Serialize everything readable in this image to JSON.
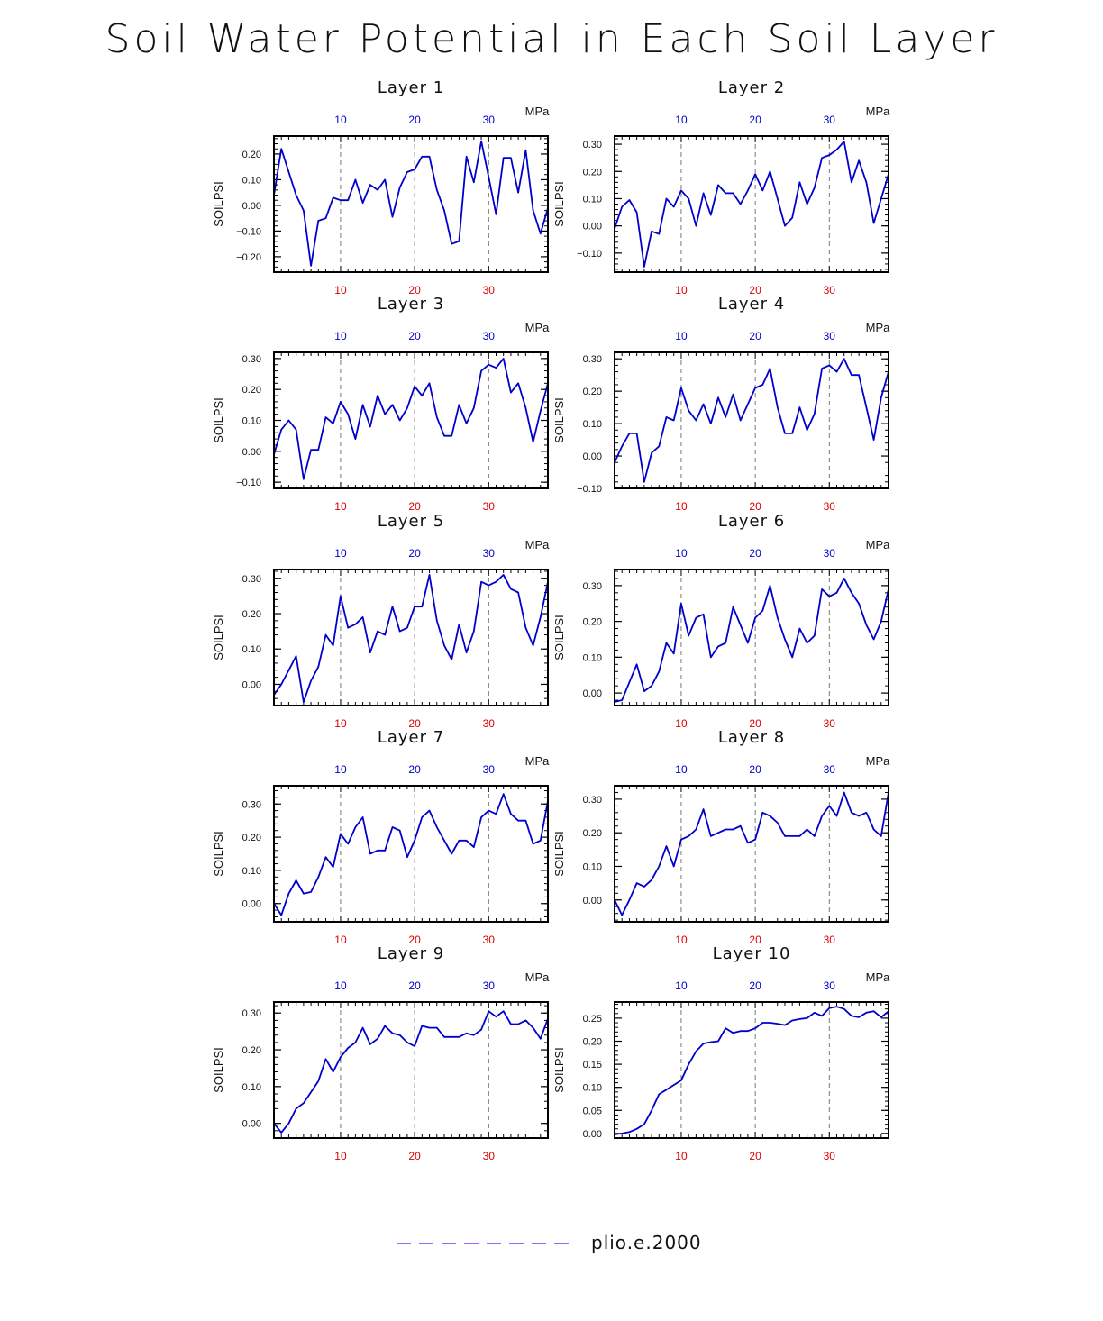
{
  "title": "Soil Water Potential in Each Soil Layer",
  "colors": {
    "line": "#0000cc",
    "top_ticks": "#0000cc",
    "bottom_ticks": "#dd0000",
    "legend": "#9966ff",
    "grid": "#555555"
  },
  "legend": {
    "label": "plio.e.2000",
    "style": "dashed"
  },
  "chart_data": [
    {
      "type": "line",
      "title": "Layer 1",
      "ylabel": "SOILPSI",
      "unit": "MPa",
      "xlim": [
        1,
        38
      ],
      "ylim": [
        -0.26,
        0.27
      ],
      "yticks": [
        -0.2,
        -0.1,
        0.0,
        0.1,
        0.2
      ],
      "ytick_labels": [
        "−0.20",
        "−0.10",
        "0.00",
        "0.10",
        "0.20"
      ],
      "xticks": [
        10,
        20,
        30
      ],
      "xtick_labels": [
        "10",
        "20",
        "30"
      ],
      "series": [
        {
          "x": [
            1,
            2,
            3,
            4,
            5,
            6,
            7,
            8,
            9,
            10,
            11,
            12,
            13,
            14,
            15,
            16,
            17,
            18,
            19,
            20,
            21,
            22,
            23,
            24,
            25,
            26,
            27,
            28,
            29,
            30,
            31,
            32,
            33,
            34,
            35,
            36,
            37,
            38
          ],
          "values": [
            0.04,
            0.22,
            0.13,
            0.04,
            -0.02,
            -0.235,
            -0.06,
            -0.05,
            0.03,
            0.02,
            0.02,
            0.1,
            0.01,
            0.08,
            0.06,
            0.1,
            -0.045,
            0.07,
            0.13,
            0.14,
            0.19,
            0.19,
            0.06,
            -0.02,
            -0.15,
            -0.14,
            0.19,
            0.09,
            0.25,
            0.11,
            -0.035,
            0.185,
            0.185,
            0.05,
            0.215,
            -0.02,
            -0.11,
            -0.01
          ]
        }
      ]
    },
    {
      "type": "line",
      "title": "Layer 2",
      "ylabel": "SOILPSI",
      "unit": "MPa",
      "xlim": [
        1,
        38
      ],
      "ylim": [
        -0.17,
        0.33
      ],
      "yticks": [
        -0.1,
        0.0,
        0.1,
        0.2,
        0.3
      ],
      "ytick_labels": [
        "−0.10",
        "0.00",
        "0.10",
        "0.20",
        "0.30"
      ],
      "xticks": [
        10,
        20,
        30
      ],
      "xtick_labels": [
        "10",
        "20",
        "30"
      ],
      "series": [
        {
          "x": [
            1,
            2,
            3,
            4,
            5,
            6,
            7,
            8,
            9,
            10,
            11,
            12,
            13,
            14,
            15,
            16,
            17,
            18,
            19,
            20,
            21,
            22,
            23,
            24,
            25,
            26,
            27,
            28,
            29,
            30,
            31,
            32,
            33,
            34,
            35,
            36,
            37,
            38
          ],
          "values": [
            -0.01,
            0.07,
            0.095,
            0.05,
            -0.15,
            -0.02,
            -0.03,
            0.1,
            0.07,
            0.13,
            0.1,
            0.0,
            0.12,
            0.04,
            0.15,
            0.12,
            0.12,
            0.08,
            0.13,
            0.19,
            0.13,
            0.2,
            0.1,
            0.0,
            0.03,
            0.16,
            0.08,
            0.14,
            0.25,
            0.26,
            0.28,
            0.31,
            0.16,
            0.24,
            0.16,
            0.01,
            0.1,
            0.19
          ]
        }
      ]
    },
    {
      "type": "line",
      "title": "Layer 3",
      "ylabel": "SOILPSI",
      "unit": "MPa",
      "xlim": [
        1,
        38
      ],
      "ylim": [
        -0.12,
        0.32
      ],
      "yticks": [
        -0.1,
        0.0,
        0.1,
        0.2,
        0.3
      ],
      "ytick_labels": [
        "−0.10",
        "0.00",
        "0.10",
        "0.20",
        "0.30"
      ],
      "xticks": [
        10,
        20,
        30
      ],
      "xtick_labels": [
        "10",
        "20",
        "30"
      ],
      "series": [
        {
          "x": [
            1,
            2,
            3,
            4,
            5,
            6,
            7,
            8,
            9,
            10,
            11,
            12,
            13,
            14,
            15,
            16,
            17,
            18,
            19,
            20,
            21,
            22,
            23,
            24,
            25,
            26,
            27,
            28,
            29,
            30,
            31,
            32,
            33,
            34,
            35,
            36,
            37,
            38
          ],
          "values": [
            -0.01,
            0.07,
            0.1,
            0.07,
            -0.09,
            0.005,
            0.005,
            0.11,
            0.09,
            0.16,
            0.12,
            0.04,
            0.15,
            0.08,
            0.18,
            0.12,
            0.15,
            0.1,
            0.14,
            0.21,
            0.18,
            0.22,
            0.11,
            0.05,
            0.05,
            0.15,
            0.09,
            0.14,
            0.26,
            0.28,
            0.27,
            0.3,
            0.19,
            0.22,
            0.14,
            0.03,
            0.13,
            0.22
          ]
        }
      ]
    },
    {
      "type": "line",
      "title": "Layer 4",
      "ylabel": "SOILPSI",
      "unit": "MPa",
      "xlim": [
        1,
        38
      ],
      "ylim": [
        -0.1,
        0.32
      ],
      "yticks": [
        -0.1,
        0.0,
        0.1,
        0.2,
        0.3
      ],
      "ytick_labels": [
        "−0.10",
        "0.00",
        "0.10",
        "0.20",
        "0.30"
      ],
      "xticks": [
        10,
        20,
        30
      ],
      "xtick_labels": [
        "10",
        "20",
        "30"
      ],
      "series": [
        {
          "x": [
            1,
            2,
            3,
            4,
            5,
            6,
            7,
            8,
            9,
            10,
            11,
            12,
            13,
            14,
            15,
            16,
            17,
            18,
            19,
            20,
            21,
            22,
            23,
            24,
            25,
            26,
            27,
            28,
            29,
            30,
            31,
            32,
            33,
            34,
            35,
            36,
            37,
            38
          ],
          "values": [
            -0.02,
            0.03,
            0.07,
            0.07,
            -0.08,
            0.01,
            0.03,
            0.12,
            0.11,
            0.21,
            0.14,
            0.11,
            0.16,
            0.1,
            0.18,
            0.12,
            0.19,
            0.11,
            0.16,
            0.21,
            0.22,
            0.27,
            0.15,
            0.07,
            0.07,
            0.15,
            0.08,
            0.13,
            0.27,
            0.28,
            0.26,
            0.3,
            0.25,
            0.25,
            0.15,
            0.05,
            0.18,
            0.26
          ]
        }
      ]
    },
    {
      "type": "line",
      "title": "Layer 5",
      "ylabel": "SOILPSI",
      "unit": "MPa",
      "xlim": [
        1,
        38
      ],
      "ylim": [
        -0.06,
        0.325
      ],
      "yticks": [
        0.0,
        0.1,
        0.2,
        0.3
      ],
      "ytick_labels": [
        "0.00",
        "0.10",
        "0.20",
        "0.30"
      ],
      "xticks": [
        10,
        20,
        30
      ],
      "xtick_labels": [
        "10",
        "20",
        "30"
      ],
      "series": [
        {
          "x": [
            1,
            2,
            3,
            4,
            5,
            6,
            7,
            8,
            9,
            10,
            11,
            12,
            13,
            14,
            15,
            16,
            17,
            18,
            19,
            20,
            21,
            22,
            23,
            24,
            25,
            26,
            27,
            28,
            29,
            30,
            31,
            32,
            33,
            34,
            35,
            36,
            37,
            38
          ],
          "values": [
            -0.03,
            0.0,
            0.04,
            0.08,
            -0.05,
            0.01,
            0.05,
            0.14,
            0.11,
            0.25,
            0.16,
            0.17,
            0.19,
            0.09,
            0.15,
            0.14,
            0.22,
            0.15,
            0.16,
            0.22,
            0.22,
            0.31,
            0.18,
            0.11,
            0.07,
            0.17,
            0.09,
            0.15,
            0.29,
            0.28,
            0.29,
            0.31,
            0.27,
            0.26,
            0.16,
            0.11,
            0.19,
            0.29
          ]
        }
      ]
    },
    {
      "type": "line",
      "title": "Layer 6",
      "ylabel": "SOILPSI",
      "unit": "MPa",
      "xlim": [
        1,
        38
      ],
      "ylim": [
        -0.035,
        0.345
      ],
      "yticks": [
        0.0,
        0.1,
        0.2,
        0.3
      ],
      "ytick_labels": [
        "0.00",
        "0.10",
        "0.20",
        "0.30"
      ],
      "xticks": [
        10,
        20,
        30
      ],
      "xtick_labels": [
        "10",
        "20",
        "30"
      ],
      "series": [
        {
          "x": [
            1,
            2,
            3,
            4,
            5,
            6,
            7,
            8,
            9,
            10,
            11,
            12,
            13,
            14,
            15,
            16,
            17,
            18,
            19,
            20,
            21,
            22,
            23,
            24,
            25,
            26,
            27,
            28,
            29,
            30,
            31,
            32,
            33,
            34,
            35,
            36,
            37,
            38
          ],
          "values": [
            -0.025,
            -0.02,
            0.03,
            0.08,
            0.005,
            0.02,
            0.06,
            0.14,
            0.11,
            0.25,
            0.16,
            0.21,
            0.22,
            0.1,
            0.13,
            0.14,
            0.24,
            0.19,
            0.14,
            0.21,
            0.23,
            0.3,
            0.21,
            0.15,
            0.1,
            0.18,
            0.14,
            0.16,
            0.29,
            0.27,
            0.28,
            0.32,
            0.28,
            0.25,
            0.19,
            0.15,
            0.2,
            0.29
          ]
        }
      ]
    },
    {
      "type": "line",
      "title": "Layer 7",
      "ylabel": "SOILPSI",
      "unit": "MPa",
      "xlim": [
        1,
        38
      ],
      "ylim": [
        -0.055,
        0.355
      ],
      "yticks": [
        0.0,
        0.1,
        0.2,
        0.3
      ],
      "ytick_labels": [
        "0.00",
        "0.10",
        "0.20",
        "0.30"
      ],
      "xticks": [
        10,
        20,
        30
      ],
      "xtick_labels": [
        "10",
        "20",
        "30"
      ],
      "series": [
        {
          "x": [
            1,
            2,
            3,
            4,
            5,
            6,
            7,
            8,
            9,
            10,
            11,
            12,
            13,
            14,
            15,
            16,
            17,
            18,
            19,
            20,
            21,
            22,
            23,
            24,
            25,
            26,
            27,
            28,
            29,
            30,
            31,
            32,
            33,
            34,
            35,
            36,
            37,
            38
          ],
          "values": [
            0.0,
            -0.035,
            0.03,
            0.07,
            0.03,
            0.035,
            0.08,
            0.14,
            0.11,
            0.21,
            0.18,
            0.23,
            0.26,
            0.15,
            0.16,
            0.16,
            0.23,
            0.22,
            0.14,
            0.19,
            0.26,
            0.28,
            0.23,
            0.19,
            0.15,
            0.19,
            0.19,
            0.17,
            0.26,
            0.28,
            0.27,
            0.33,
            0.27,
            0.25,
            0.25,
            0.18,
            0.19,
            0.31
          ]
        }
      ]
    },
    {
      "type": "line",
      "title": "Layer 8",
      "ylabel": "SOILPSI",
      "unit": "MPa",
      "xlim": [
        1,
        38
      ],
      "ylim": [
        -0.065,
        0.34
      ],
      "yticks": [
        0.0,
        0.1,
        0.2,
        0.3
      ],
      "ytick_labels": [
        "0.00",
        "0.10",
        "0.20",
        "0.30"
      ],
      "xticks": [
        10,
        20,
        30
      ],
      "xtick_labels": [
        "10",
        "20",
        "30"
      ],
      "series": [
        {
          "x": [
            1,
            2,
            3,
            4,
            5,
            6,
            7,
            8,
            9,
            10,
            11,
            12,
            13,
            14,
            15,
            16,
            17,
            18,
            19,
            20,
            21,
            22,
            23,
            24,
            25,
            26,
            27,
            28,
            29,
            30,
            31,
            32,
            33,
            34,
            35,
            36,
            37,
            38
          ],
          "values": [
            0.0,
            -0.045,
            0.0,
            0.05,
            0.04,
            0.06,
            0.1,
            0.16,
            0.1,
            0.18,
            0.19,
            0.21,
            0.27,
            0.19,
            0.2,
            0.21,
            0.21,
            0.22,
            0.17,
            0.18,
            0.26,
            0.25,
            0.23,
            0.19,
            0.19,
            0.19,
            0.21,
            0.19,
            0.25,
            0.28,
            0.25,
            0.32,
            0.26,
            0.25,
            0.26,
            0.21,
            0.19,
            0.32
          ]
        }
      ]
    },
    {
      "type": "line",
      "title": "Layer 9",
      "ylabel": "SOILPSI",
      "unit": "MPa",
      "xlim": [
        1,
        38
      ],
      "ylim": [
        -0.04,
        0.33
      ],
      "yticks": [
        0.0,
        0.1,
        0.2,
        0.3
      ],
      "ytick_labels": [
        "0.00",
        "0.10",
        "0.20",
        "0.30"
      ],
      "xticks": [
        10,
        20,
        30
      ],
      "xtick_labels": [
        "10",
        "20",
        "30"
      ],
      "series": [
        {
          "x": [
            1,
            2,
            3,
            4,
            5,
            6,
            7,
            8,
            9,
            10,
            11,
            12,
            13,
            14,
            15,
            16,
            17,
            18,
            19,
            20,
            21,
            22,
            23,
            24,
            25,
            26,
            27,
            28,
            29,
            30,
            31,
            32,
            33,
            34,
            35,
            36,
            37,
            38
          ],
          "values": [
            0.0,
            -0.025,
            0.0,
            0.04,
            0.055,
            0.085,
            0.115,
            0.175,
            0.14,
            0.18,
            0.205,
            0.22,
            0.26,
            0.215,
            0.23,
            0.265,
            0.245,
            0.24,
            0.22,
            0.21,
            0.265,
            0.26,
            0.26,
            0.235,
            0.235,
            0.235,
            0.245,
            0.24,
            0.255,
            0.305,
            0.29,
            0.305,
            0.27,
            0.27,
            0.28,
            0.26,
            0.23,
            0.285
          ]
        }
      ]
    },
    {
      "type": "line",
      "title": "Layer 10",
      "ylabel": "SOILPSI",
      "unit": "MPa",
      "xlim": [
        1,
        38
      ],
      "ylim": [
        -0.01,
        0.285
      ],
      "yticks": [
        0.0,
        0.05,
        0.1,
        0.15,
        0.2,
        0.25
      ],
      "ytick_labels": [
        "0.00",
        "0.05",
        "0.10",
        "0.15",
        "0.20",
        "0.25"
      ],
      "xticks": [
        10,
        20,
        30
      ],
      "xtick_labels": [
        "10",
        "20",
        "30"
      ],
      "series": [
        {
          "x": [
            1,
            2,
            3,
            4,
            5,
            6,
            7,
            8,
            9,
            10,
            11,
            12,
            13,
            14,
            15,
            16,
            17,
            18,
            19,
            20,
            21,
            22,
            23,
            24,
            25,
            26,
            27,
            28,
            29,
            30,
            31,
            32,
            33,
            34,
            35,
            36,
            37,
            38
          ],
          "values": [
            -0.002,
            0.0,
            0.003,
            0.01,
            0.02,
            0.05,
            0.085,
            0.095,
            0.105,
            0.115,
            0.15,
            0.178,
            0.195,
            0.198,
            0.2,
            0.228,
            0.218,
            0.222,
            0.222,
            0.228,
            0.24,
            0.24,
            0.238,
            0.235,
            0.245,
            0.248,
            0.25,
            0.262,
            0.255,
            0.272,
            0.275,
            0.27,
            0.255,
            0.252,
            0.262,
            0.265,
            0.252,
            0.265
          ]
        }
      ]
    }
  ]
}
